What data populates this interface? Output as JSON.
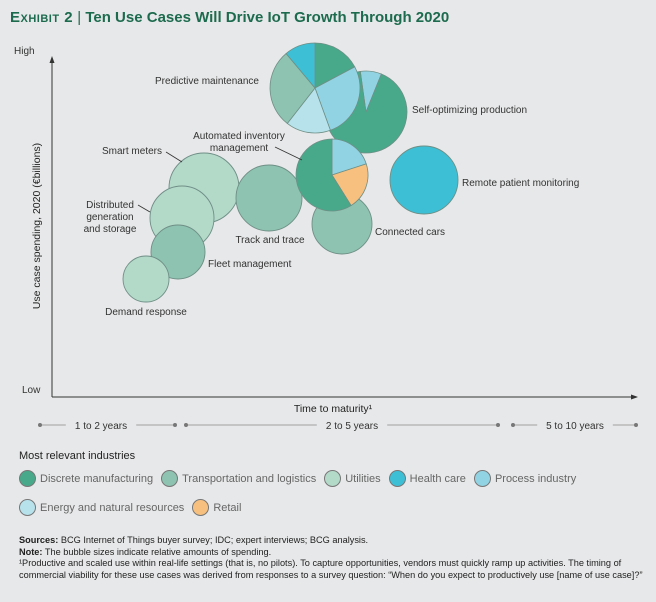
{
  "title": {
    "exhibit": "Exhibit 2",
    "separator": "|",
    "text": "Ten Use Cases Will Drive IoT Growth Through 2020"
  },
  "chart_data": {
    "type": "bubble",
    "ylabel": "Use case spending, 2020 (€billions)",
    "xlabel": "Time to maturity¹",
    "y_ticks": [
      "High",
      "Low"
    ],
    "x_bands": [
      "1 to 2 years",
      "2 to 5 years",
      "5 to 10 years"
    ],
    "grid": false,
    "legend_title": "Most relevant industries",
    "industries": [
      {
        "name": "Discrete manufacturing",
        "color": "#47a98a"
      },
      {
        "name": "Transportation and logistics",
        "color": "#8dc3b0"
      },
      {
        "name": "Utilities",
        "color": "#b3d9c9"
      },
      {
        "name": "Health care",
        "color": "#3dbfd6"
      },
      {
        "name": "Process industry",
        "color": "#92d3e3"
      },
      {
        "name": "Energy and natural resources",
        "color": "#b7e2ec"
      },
      {
        "name": "Retail",
        "color": "#f8c07e"
      }
    ],
    "bubbles": [
      {
        "label": "Self-optimizing production",
        "maturity": "2 to 5 years",
        "spending": "very high",
        "industries": [
          "Discrete manufacturing",
          "Process industry"
        ]
      },
      {
        "label": "Predictive maintenance",
        "maturity": "2 to 5 years",
        "spending": "highest",
        "industries": [
          "Discrete manufacturing",
          "Process industry",
          "Energy and natural resources",
          "Transportation and logistics",
          "Health care"
        ]
      },
      {
        "label": "Connected cars",
        "maturity": "2 to 5 years",
        "spending": "medium",
        "industries": [
          "Transportation and logistics"
        ]
      },
      {
        "label": "Automated inventory management",
        "maturity": "2 to 5 years",
        "spending": "medium-high",
        "industries": [
          "Discrete manufacturing",
          "Process industry",
          "Retail"
        ]
      },
      {
        "label": "Remote patient monitoring",
        "maturity": "5 to 10 years",
        "spending": "medium-high",
        "industries": [
          "Health care"
        ]
      },
      {
        "label": "Track and trace",
        "maturity": "2 to 5 years",
        "spending": "medium",
        "industries": [
          "Transportation and logistics"
        ]
      },
      {
        "label": "Smart meters",
        "maturity": "1 to 2 years",
        "spending": "medium",
        "industries": [
          "Utilities"
        ]
      },
      {
        "label": "Distributed generation and storage",
        "maturity": "1 to 2 years",
        "spending": "medium-low",
        "industries": [
          "Utilities"
        ]
      },
      {
        "label": "Fleet management",
        "maturity": "1 to 2 years",
        "spending": "low",
        "industries": [
          "Transportation and logistics"
        ]
      },
      {
        "label": "Demand response",
        "maturity": "1 to 2 years",
        "spending": "lowest",
        "industries": [
          "Utilities"
        ]
      }
    ]
  },
  "notes": {
    "sources_label": "Sources:",
    "sources": "BCG Internet of Things buyer survey; IDC; expert interviews; BCG analysis.",
    "note_label": "Note:",
    "note": "The bubble sizes indicate relative amounts of spending.",
    "footnote": "¹Productive and scaled use within real-life settings (that is, no pilots). To capture opportunities, vendors must quickly ramp up activities. The timing of commercial viability for these use cases was derived from responses to a survey question: “When do you expect to productively use [name of use case]?”"
  }
}
